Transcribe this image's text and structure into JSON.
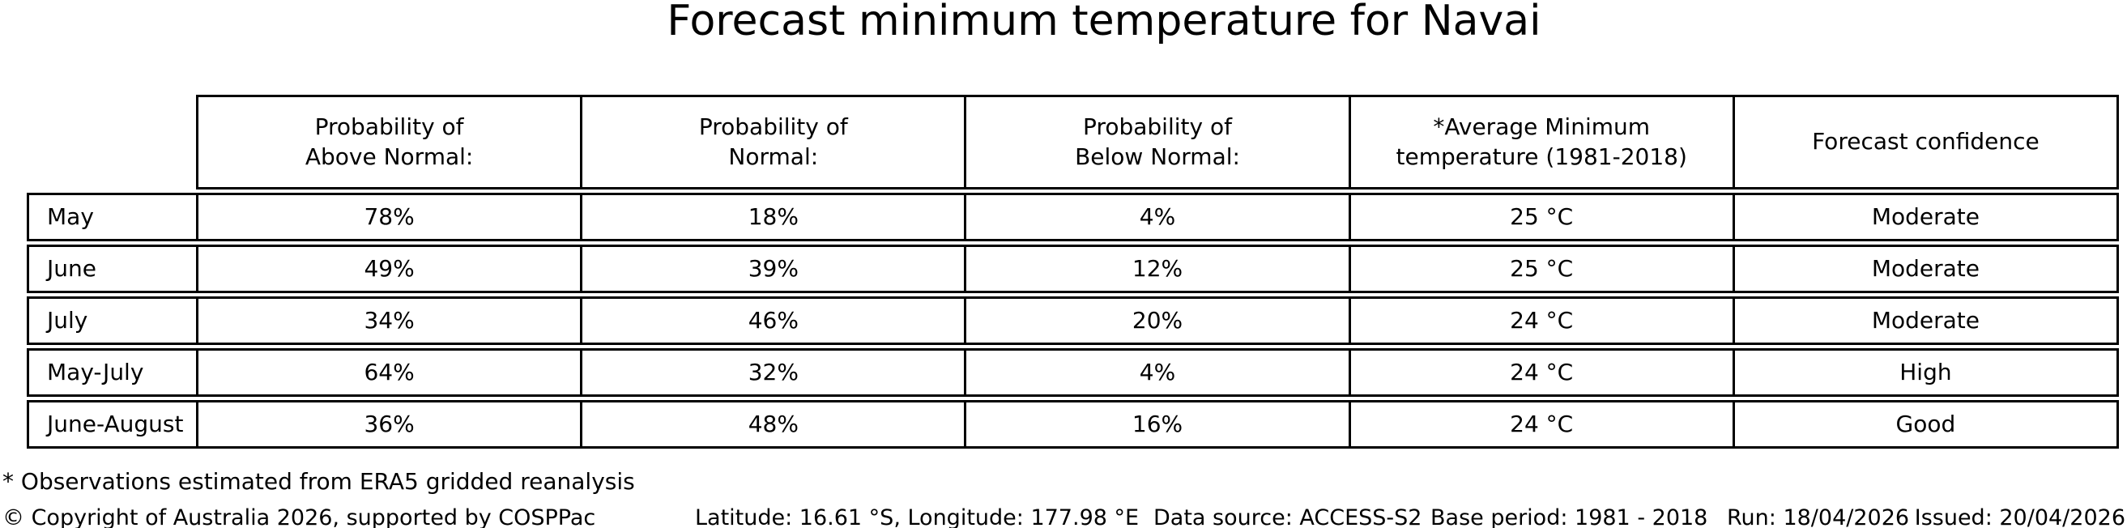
{
  "title": "Forecast minimum temperature for Navai",
  "colors": {
    "border": "#000000",
    "text": "#000000",
    "background": "#ffffff"
  },
  "table": {
    "column_headers": [
      "Probability of\nAbove Normal:",
      "Probability of\nNormal:",
      "Probability of\nBelow Normal:",
      "*Average Minimum\ntemperature (1981-2018)",
      "Forecast confidence"
    ],
    "rows": [
      {
        "label": "May",
        "above_normal": "78%",
        "normal": "18%",
        "below_normal": "4%",
        "avg_min_temp": "25 °C",
        "confidence": "Moderate"
      },
      {
        "label": "June",
        "above_normal": "49%",
        "normal": "39%",
        "below_normal": "12%",
        "avg_min_temp": "25 °C",
        "confidence": "Moderate"
      },
      {
        "label": "July",
        "above_normal": "34%",
        "normal": "46%",
        "below_normal": "20%",
        "avg_min_temp": "24 °C",
        "confidence": "Moderate"
      },
      {
        "label": "May-July",
        "above_normal": "64%",
        "normal": "32%",
        "below_normal": "4%",
        "avg_min_temp": "24 °C",
        "confidence": "High"
      },
      {
        "label": "June-August",
        "above_normal": "36%",
        "normal": "48%",
        "below_normal": "16%",
        "avg_min_temp": "24 °C",
        "confidence": "Good"
      }
    ]
  },
  "footnote": "* Observations estimated from ERA5 gridded reanalysis",
  "footer": {
    "copyright": "© Copyright of Australia 2026, supported by COSPPac",
    "coordinates": "Latitude: 16.61 °S, Longitude: 177.98 °E",
    "data_source": "Data source: ACCESS-S2",
    "base_period": "Base period: 1981 - 2018",
    "run": "Run: 18/04/2026",
    "issued": "Issued: 20/04/2026"
  },
  "chart_data": {
    "type": "table",
    "title": "Forecast minimum temperature for Navai",
    "row_labels": [
      "May",
      "June",
      "July",
      "May-July",
      "June-August"
    ],
    "columns": [
      "Probability of Above Normal:",
      "Probability of Normal:",
      "Probability of Below Normal:",
      "*Average Minimum temperature (1981-2018)",
      "Forecast confidence"
    ],
    "series": [
      {
        "name": "Probability of Above Normal (%)",
        "values": [
          78,
          49,
          34,
          64,
          36
        ]
      },
      {
        "name": "Probability of Normal (%)",
        "values": [
          18,
          39,
          46,
          32,
          48
        ]
      },
      {
        "name": "Probability of Below Normal (%)",
        "values": [
          4,
          12,
          20,
          4,
          16
        ]
      },
      {
        "name": "Average Minimum temperature 1981-2018 (°C)",
        "values": [
          25,
          25,
          24,
          24,
          24
        ]
      },
      {
        "name": "Forecast confidence",
        "values": [
          "Moderate",
          "Moderate",
          "Moderate",
          "High",
          "Good"
        ]
      }
    ],
    "legend_position": "none",
    "grid": "table-borders"
  }
}
